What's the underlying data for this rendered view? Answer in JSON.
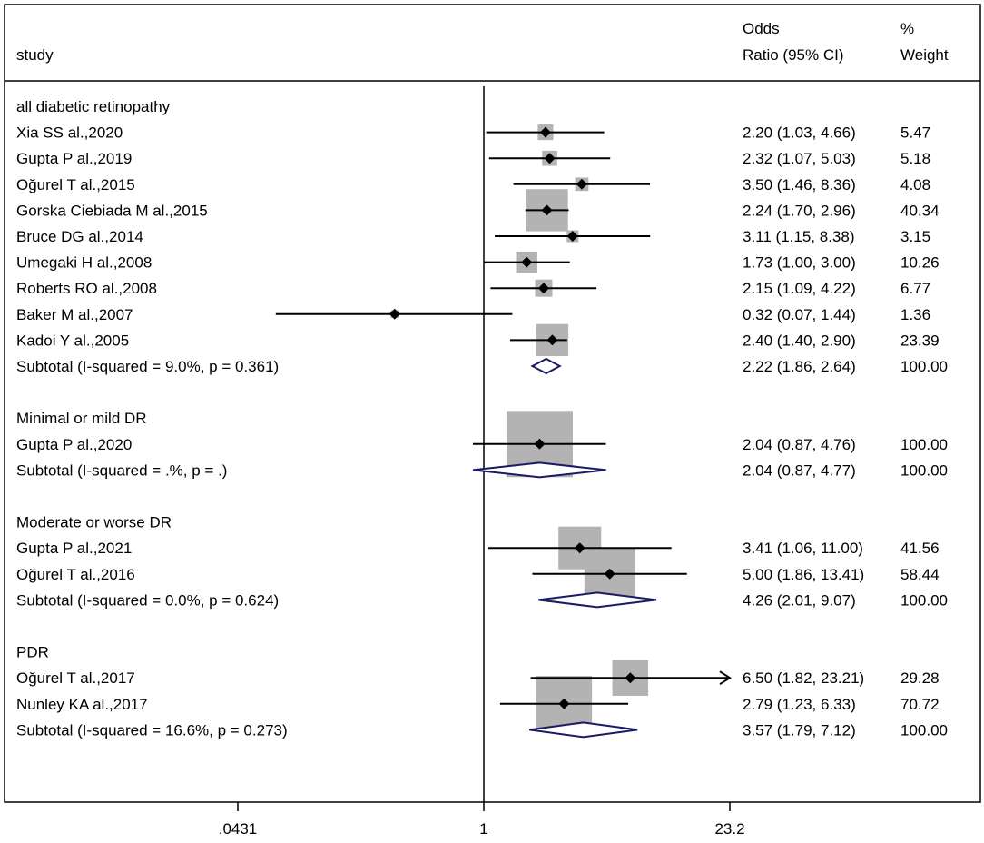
{
  "chart_data": {
    "type": "forest",
    "columns": {
      "study": "study",
      "or_line1": "Odds",
      "or_line2": "Ratio (95% CI)",
      "wt_line1": "%",
      "wt_line2": "Weight"
    },
    "x_scale": "log",
    "xlim": [
      0.0431,
      23.2
    ],
    "null_line": 1,
    "x_ticks": [
      {
        "value": 0.0431,
        "label": ".0431"
      },
      {
        "value": 1,
        "label": "1"
      },
      {
        "value": 23.2,
        "label": "23.2"
      }
    ],
    "groups": [
      {
        "name": "all diabetic retinopathy",
        "studies": [
          {
            "label": "Xia SS al.,2020",
            "or": 2.2,
            "lo": 1.03,
            "hi": 4.66,
            "ci_text": "2.20 (1.03, 4.66)",
            "weight": 5.47,
            "weight_text": "5.47"
          },
          {
            "label": "Gupta P al.,2019",
            "or": 2.32,
            "lo": 1.07,
            "hi": 5.03,
            "ci_text": "2.32 (1.07, 5.03)",
            "weight": 5.18,
            "weight_text": "5.18"
          },
          {
            "label": "Oğurel T al.,2015",
            "or": 3.5,
            "lo": 1.46,
            "hi": 8.36,
            "ci_text": "3.50 (1.46, 8.36)",
            "weight": 4.08,
            "weight_text": "4.08"
          },
          {
            "label": "Gorska Ciebiada M al.,2015",
            "or": 2.24,
            "lo": 1.7,
            "hi": 2.96,
            "ci_text": "2.24 (1.70, 2.96)",
            "weight": 40.34,
            "weight_text": "40.34"
          },
          {
            "label": "Bruce DG al.,2014",
            "or": 3.11,
            "lo": 1.15,
            "hi": 8.38,
            "ci_text": "3.11 (1.15, 8.38)",
            "weight": 3.15,
            "weight_text": "3.15"
          },
          {
            "label": "Umegaki H al.,2008",
            "or": 1.73,
            "lo": 1.0,
            "hi": 3.0,
            "ci_text": "1.73 (1.00, 3.00)",
            "weight": 10.26,
            "weight_text": "10.26"
          },
          {
            "label": "Roberts RO al.,2008",
            "or": 2.15,
            "lo": 1.09,
            "hi": 4.22,
            "ci_text": "2.15 (1.09, 4.22)",
            "weight": 6.77,
            "weight_text": "6.77"
          },
          {
            "label": "Baker M al.,2007",
            "or": 0.32,
            "lo": 0.07,
            "hi": 1.44,
            "ci_text": "0.32 (0.07, 1.44)",
            "weight": 1.36,
            "weight_text": "1.36"
          },
          {
            "label": "Kadoi Y al.,2005",
            "or": 2.4,
            "lo": 1.4,
            "hi": 2.9,
            "ci_text": "2.40 (1.40, 2.90)",
            "weight": 23.39,
            "weight_text": "23.39"
          }
        ],
        "subtotal": {
          "label": "Subtotal  (I-squared = 9.0%, p = 0.361)",
          "or": 2.22,
          "lo": 1.86,
          "hi": 2.64,
          "ci_text": "2.22 (1.86, 2.64)",
          "weight_text": "100.00"
        }
      },
      {
        "name": "Minimal or mild DR",
        "studies": [
          {
            "label": "Gupta P al.,2020",
            "or": 2.04,
            "lo": 0.87,
            "hi": 4.76,
            "ci_text": "2.04 (0.87, 4.76)",
            "weight": 100.0,
            "weight_text": "100.00"
          }
        ],
        "subtotal": {
          "label": "Subtotal  (I-squared = .%, p = .)",
          "or": 2.04,
          "lo": 0.87,
          "hi": 4.77,
          "ci_text": "2.04 (0.87, 4.77)",
          "weight_text": "100.00"
        }
      },
      {
        "name": "Moderate or worse DR",
        "studies": [
          {
            "label": "Gupta P al.,2021",
            "or": 3.41,
            "lo": 1.06,
            "hi": 11.0,
            "ci_text": "3.41 (1.06, 11.00)",
            "weight": 41.56,
            "weight_text": "41.56"
          },
          {
            "label": "Oğurel T al.,2016",
            "or": 5.0,
            "lo": 1.86,
            "hi": 13.41,
            "ci_text": "5.00 (1.86, 13.41)",
            "weight": 58.44,
            "weight_text": "58.44"
          }
        ],
        "subtotal": {
          "label": "Subtotal  (I-squared = 0.0%, p = 0.624)",
          "or": 4.26,
          "lo": 2.01,
          "hi": 9.07,
          "ci_text": "4.26 (2.01, 9.07)",
          "weight_text": "100.00"
        }
      },
      {
        "name": "PDR",
        "studies": [
          {
            "label": "Oğurel T al.,2017",
            "or": 6.5,
            "lo": 1.82,
            "hi": 23.21,
            "ci_text": "6.50 (1.82, 23.21)",
            "weight": 29.28,
            "weight_text": "29.28"
          },
          {
            "label": "Nunley KA al.,2017",
            "or": 2.79,
            "lo": 1.23,
            "hi": 6.33,
            "ci_text": "2.79 (1.23, 6.33)",
            "weight": 70.72,
            "weight_text": "70.72"
          }
        ],
        "subtotal": {
          "label": "Subtotal  (I-squared = 16.6%, p = 0.273)",
          "or": 3.57,
          "lo": 1.79,
          "hi": 7.12,
          "ci_text": "3.57 (1.79, 7.12)",
          "weight_text": "100.00"
        }
      }
    ],
    "colors": {
      "box": "#b3b3b3",
      "point": "#000000",
      "diamond": "#1a1a66",
      "frame": "#000000"
    }
  }
}
